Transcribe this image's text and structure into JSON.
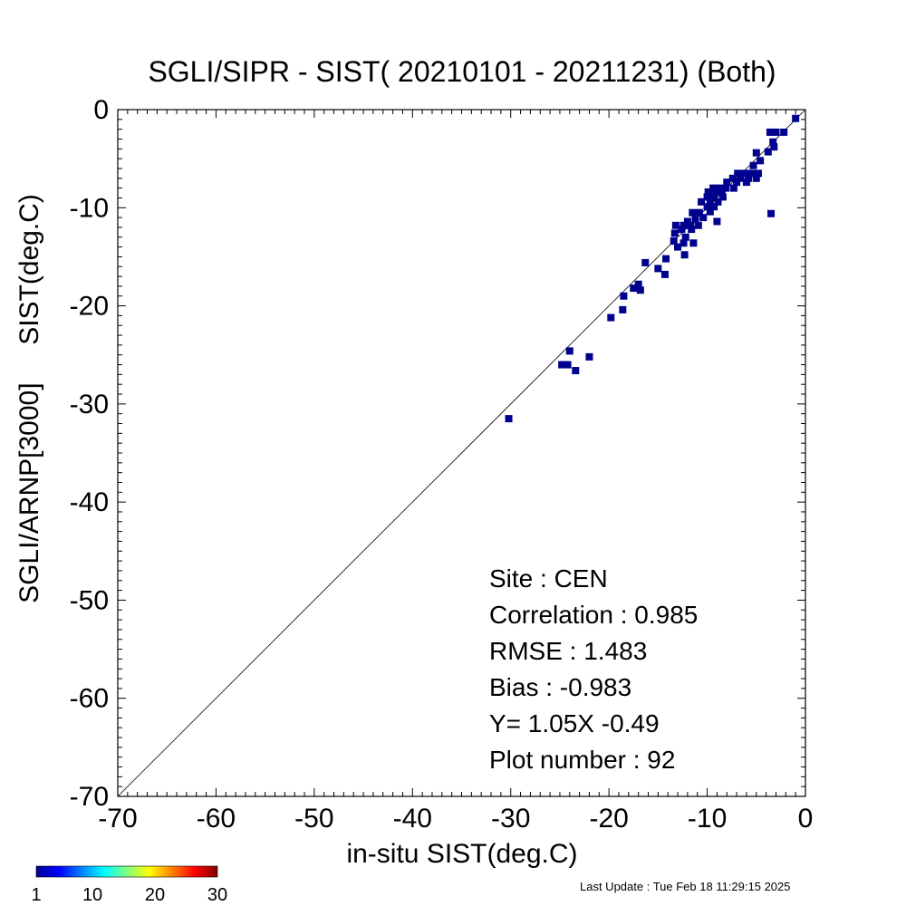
{
  "chart_data": {
    "type": "scatter",
    "title": "SGLI/SIPR - SIST( 20210101 - 20211231) (Both)",
    "xlabel": "in-situ SIST(deg.C)",
    "ylabel": "SGLI/ARNP[3000]     SIST(deg.C)",
    "xlim": [
      -70,
      0
    ],
    "ylim": [
      -70,
      0
    ],
    "xticks": [
      -70,
      -60,
      -50,
      -40,
      -30,
      -20,
      -10,
      0
    ],
    "yticks": [
      -70,
      -60,
      -50,
      -40,
      -30,
      -20,
      -10,
      0
    ],
    "xtick_labels": [
      "-70",
      "-60",
      "-50",
      "-40",
      "-30",
      "-20",
      "-10",
      "0"
    ],
    "ytick_labels": [
      "-70",
      "-60",
      "-50",
      "-40",
      "-30",
      "-20",
      "-10",
      "0"
    ],
    "reference_line": "y = x",
    "grid": false,
    "point_color": "#00008F",
    "points": [
      [
        -1.0,
        -0.9
      ],
      [
        -2.2,
        -2.3
      ],
      [
        -3.0,
        -2.3
      ],
      [
        -3.6,
        -2.3
      ],
      [
        -3.3,
        -3.3
      ],
      [
        -3.2,
        -3.8
      ],
      [
        -3.8,
        -4.3
      ],
      [
        -5.0,
        -4.4
      ],
      [
        -4.6,
        -5.2
      ],
      [
        -5.3,
        -5.7
      ],
      [
        -4.8,
        -6.5
      ],
      [
        -5.5,
        -6.5
      ],
      [
        -6.2,
        -6.5
      ],
      [
        -6.9,
        -6.5
      ],
      [
        -5.0,
        -7.0
      ],
      [
        -5.8,
        -7.0
      ],
      [
        -6.6,
        -7.0
      ],
      [
        -7.4,
        -7.0
      ],
      [
        -6.0,
        -7.4
      ],
      [
        -7.0,
        -7.4
      ],
      [
        -8.0,
        -7.4
      ],
      [
        -7.3,
        -8.0
      ],
      [
        -8.1,
        -8.0
      ],
      [
        -8.8,
        -8.0
      ],
      [
        -9.4,
        -8.0
      ],
      [
        -8.5,
        -8.4
      ],
      [
        -9.2,
        -8.4
      ],
      [
        -9.9,
        -8.4
      ],
      [
        -8.4,
        -8.9
      ],
      [
        -9.3,
        -8.9
      ],
      [
        -10.0,
        -8.9
      ],
      [
        -8.9,
        -9.4
      ],
      [
        -9.7,
        -9.4
      ],
      [
        -10.6,
        -9.4
      ],
      [
        -9.3,
        -9.9
      ],
      [
        -10.0,
        -9.9
      ],
      [
        -9.7,
        -10.4
      ],
      [
        -10.8,
        -10.5
      ],
      [
        -11.5,
        -10.5
      ],
      [
        -10.4,
        -11.0
      ],
      [
        -11.2,
        -11.2
      ],
      [
        -12.0,
        -11.4
      ],
      [
        -10.9,
        -11.8
      ],
      [
        -11.7,
        -11.8
      ],
      [
        -12.4,
        -11.8
      ],
      [
        -9.0,
        -11.4
      ],
      [
        -13.2,
        -11.8
      ],
      [
        -11.6,
        -12.2
      ],
      [
        -12.6,
        -12.2
      ],
      [
        -13.3,
        -12.6
      ],
      [
        -12.2,
        -13.0
      ],
      [
        -13.4,
        -13.4
      ],
      [
        -12.4,
        -13.6
      ],
      [
        -11.4,
        -13.6
      ],
      [
        -13.0,
        -14.0
      ],
      [
        -12.3,
        -14.8
      ],
      [
        -3.5,
        -10.6
      ],
      [
        -16.3,
        -15.6
      ],
      [
        -14.2,
        -15.2
      ],
      [
        -15.0,
        -16.2
      ],
      [
        -14.3,
        -16.8
      ],
      [
        -17.0,
        -17.8
      ],
      [
        -17.5,
        -18.2
      ],
      [
        -16.8,
        -18.4
      ],
      [
        -18.5,
        -19.0
      ],
      [
        -18.6,
        -20.4
      ],
      [
        -19.8,
        -21.2
      ],
      [
        -24.0,
        -24.6
      ],
      [
        -22.0,
        -25.2
      ],
      [
        -24.8,
        -26.0
      ],
      [
        -24.2,
        -26.0
      ],
      [
        -23.4,
        -26.6
      ],
      [
        -30.2,
        -31.5
      ]
    ],
    "stats": {
      "site": "Site : CEN",
      "correlation": "Correlation :    0.985",
      "rmse": "RMSE :    1.483",
      "bias": "Bias :   -0.983",
      "regression": "Y=   1.05X  -0.49",
      "plot_number": "Plot number :        92"
    },
    "colorbar": {
      "min": 1,
      "max": 30,
      "tick_labels": [
        "1",
        "10",
        "20",
        "30"
      ],
      "tick_values": [
        1,
        10,
        20,
        30
      ],
      "colormap": "jet"
    }
  },
  "footer": {
    "last_update": "Last Update : Tue Feb 18 11:29:15 2025"
  }
}
